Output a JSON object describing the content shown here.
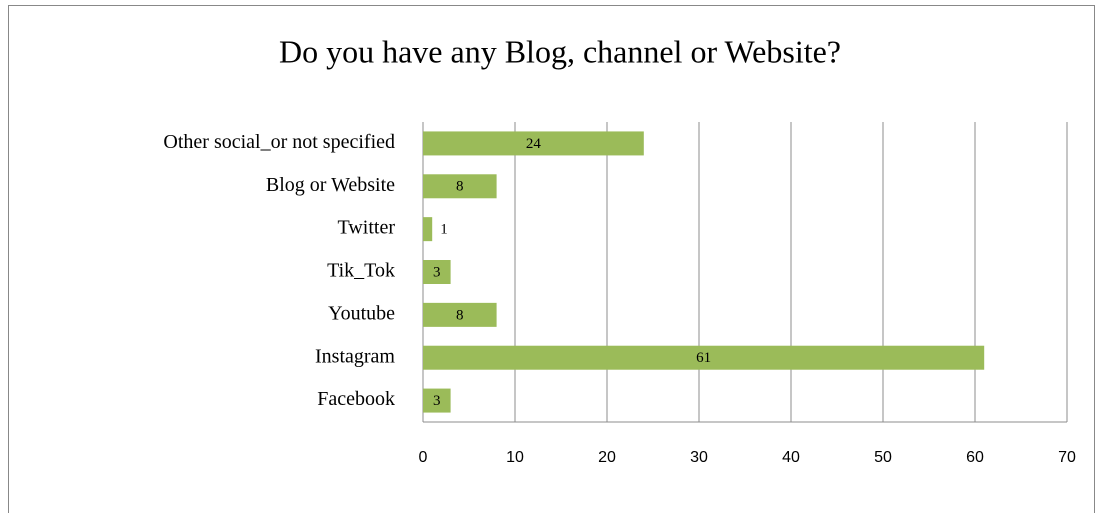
{
  "chart_data": {
    "type": "bar",
    "orientation": "horizontal",
    "title": "Do you have any Blog, channel or Website?",
    "categories": [
      "Facebook",
      "Instagram",
      "Youtube",
      "Tik_Tok",
      "Twitter",
      "Blog or Website",
      "Other social_or not specified"
    ],
    "values": [
      3,
      61,
      8,
      3,
      1,
      8,
      24
    ],
    "color": "#9bbb59",
    "xlim": [
      0,
      70
    ],
    "xticks": [
      0,
      10,
      20,
      30,
      40,
      50,
      60,
      70
    ],
    "grid": true
  }
}
